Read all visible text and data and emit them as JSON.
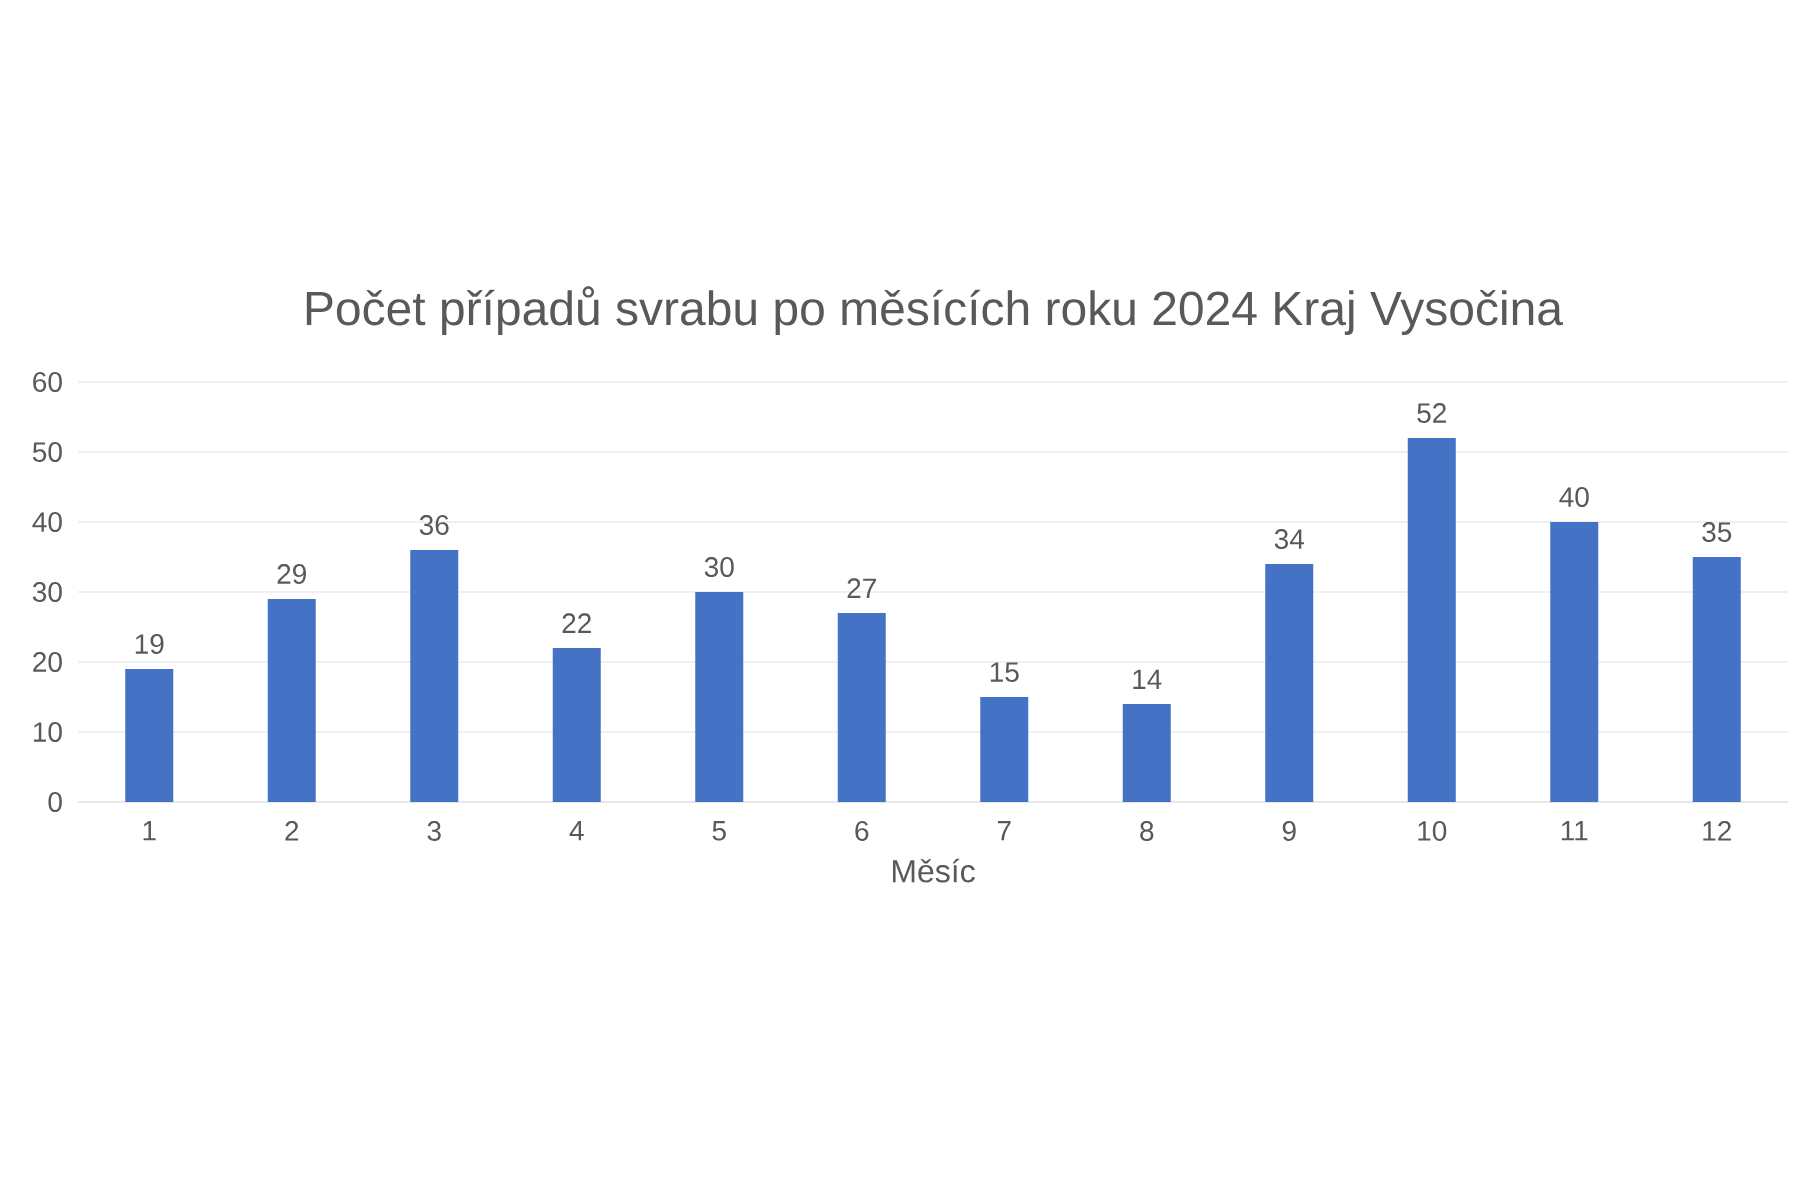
{
  "chart_data": {
    "type": "bar",
    "title": "Počet případů svrabu po měsících roku 2024 Kraj Vysočina",
    "xlabel": "Měsíc",
    "categories": [
      "1",
      "2",
      "3",
      "4",
      "5",
      "6",
      "7",
      "8",
      "9",
      "10",
      "11",
      "12"
    ],
    "values": [
      19,
      29,
      36,
      22,
      30,
      27,
      15,
      14,
      34,
      52,
      40,
      35
    ],
    "color": "#4472c4",
    "ylim": [
      0,
      60
    ],
    "yticks": [
      0,
      10,
      20,
      30,
      40,
      50,
      60
    ],
    "grid": "y",
    "data_labels": true
  }
}
